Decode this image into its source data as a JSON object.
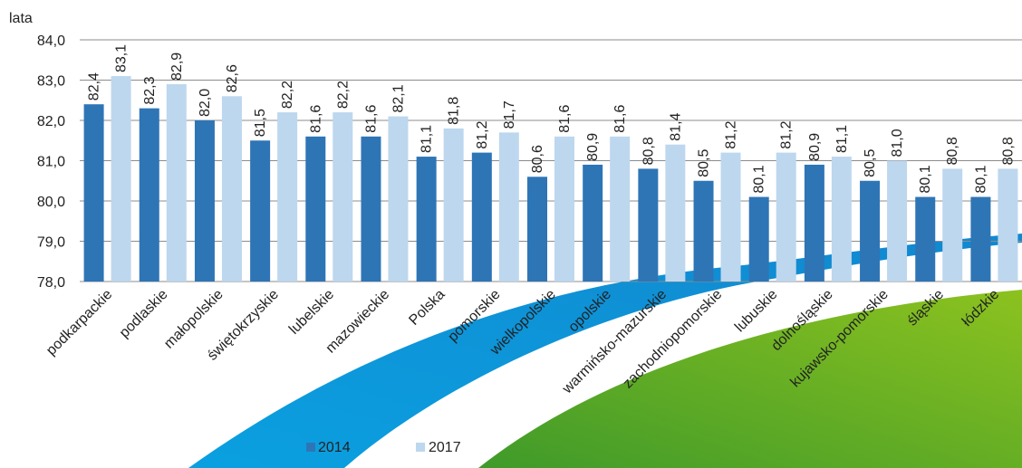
{
  "chart_data": {
    "type": "bar",
    "y_unit_label": "lata",
    "categories": [
      "podkarpackie",
      "podlaskie",
      "małopolskie",
      "świętokrzyskie",
      "lubelskie",
      "mazowieckie",
      "Polska",
      "pomorskie",
      "wielkopolskie",
      "opolskie",
      "warmińsko-mazurskie",
      "zachodniopomorskie",
      "lubuskie",
      "dolnośląskie",
      "kujawsko-pomorskie",
      "śląskie",
      "łódzkie"
    ],
    "series": [
      {
        "name": "2014",
        "color": "#2e75b6",
        "values": [
          82.4,
          82.3,
          82.0,
          81.5,
          81.6,
          81.6,
          81.1,
          81.2,
          80.6,
          80.9,
          80.8,
          80.5,
          80.1,
          80.9,
          80.5,
          80.1,
          80.1
        ],
        "labels": [
          "82,4",
          "82,3",
          "82,0",
          "81,5",
          "81,6",
          "81,6",
          "81,1",
          "81,2",
          "80,6",
          "80,9",
          "80,8",
          "80,5",
          "80,1",
          "80,9",
          "80,5",
          "80,1",
          "80,1"
        ]
      },
      {
        "name": "2017",
        "color": "#bdd7ee",
        "values": [
          83.1,
          82.9,
          82.6,
          82.2,
          82.2,
          82.1,
          81.8,
          81.7,
          81.6,
          81.6,
          81.4,
          81.2,
          81.2,
          81.1,
          81.0,
          80.8,
          80.8
        ],
        "labels": [
          "83,1",
          "82,9",
          "82,6",
          "82,2",
          "82,2",
          "82,1",
          "81,8",
          "81,7",
          "81,6",
          "81,6",
          "81,4",
          "81,2",
          "81,2",
          "81,1",
          "81,0",
          "80,8",
          "80,8"
        ]
      }
    ],
    "ylim": [
      78.0,
      84.0
    ],
    "y_ticks": [
      78.0,
      79.0,
      80.0,
      81.0,
      82.0,
      83.0,
      84.0
    ],
    "y_tick_labels": [
      "78,0",
      "79,0",
      "80,0",
      "81,0",
      "82,0",
      "83,0",
      "84,0"
    ],
    "grid": true,
    "legend_position": "bottom"
  }
}
